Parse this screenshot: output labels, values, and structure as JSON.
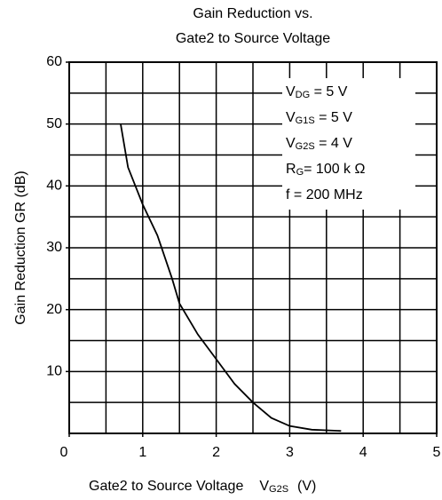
{
  "chart_data": {
    "type": "line",
    "title": [
      "Gain Reduction vs.",
      "Gate2 to Source Voltage"
    ],
    "ylabel": "Gain Reduction   GR  (dB)",
    "xlabel": {
      "text": "Gate2 to Source Voltage",
      "symbol": "V",
      "sub": "G2S",
      "unit": "(V)"
    },
    "xlim": [
      0,
      5
    ],
    "ylim": [
      0,
      60
    ],
    "xticks": [
      0,
      1,
      2,
      3,
      4,
      5
    ],
    "yticks": [
      10,
      20,
      30,
      40,
      50,
      60
    ],
    "xgrid": [
      0.5,
      1,
      1.5,
      2,
      2.5,
      3,
      3.5,
      4,
      4.5
    ],
    "ygrid": [
      5,
      10,
      15,
      20,
      25,
      30,
      35,
      40,
      45,
      50,
      55
    ],
    "grid": true,
    "annotations": [
      {
        "symbol": "V",
        "sub": "DG",
        "text": " = 5 V"
      },
      {
        "symbol": "V",
        "sub": "G1S",
        "text": " = 5 V"
      },
      {
        "symbol": "V",
        "sub": "G2S",
        "text": " = 4 V"
      },
      {
        "symbol": "R",
        "sub": "G",
        "text": "= 100 k Ω"
      },
      {
        "symbol": "f",
        "sub": "",
        "text": " = 200 MHz"
      }
    ],
    "series": [
      {
        "name": "GR",
        "color": "#000000",
        "x": [
          0.7,
          0.8,
          1.0,
          1.2,
          1.4,
          1.5,
          1.75,
          2.0,
          2.25,
          2.5,
          2.75,
          3.0,
          3.3,
          3.7
        ],
        "values": [
          50,
          43,
          37,
          32,
          25,
          21,
          16,
          12,
          8,
          5,
          2.5,
          1.2,
          0.6,
          0.4
        ]
      }
    ]
  }
}
